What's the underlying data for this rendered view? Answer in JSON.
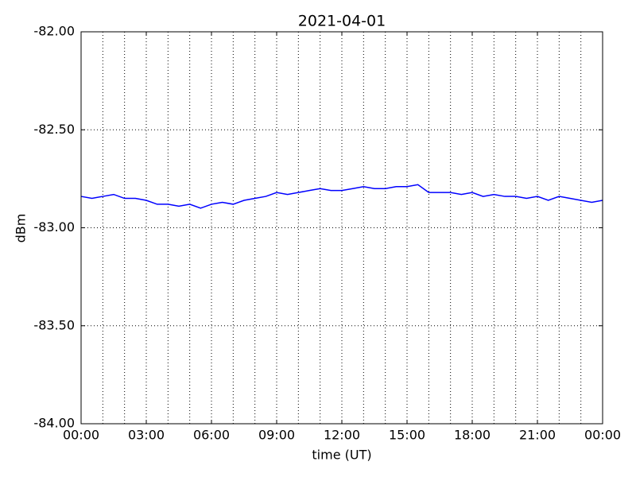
{
  "chart_data": {
    "type": "line",
    "title": "2021-04-01",
    "x_label": "time (UT)",
    "y_label": "dBm",
    "x": [
      0,
      0.5,
      1,
      1.5,
      2,
      2.5,
      3,
      3.5,
      4,
      4.5,
      5,
      5.5,
      6,
      6.5,
      7,
      7.5,
      8,
      8.5,
      9,
      9.5,
      10,
      10.5,
      11,
      11.5,
      12,
      12.5,
      13,
      13.5,
      14,
      14.5,
      15,
      15.5,
      16,
      16.5,
      17,
      17.5,
      18,
      18.5,
      19,
      19.5,
      20,
      20.5,
      21,
      21.5,
      22,
      22.5,
      23,
      23.5,
      24
    ],
    "series": [
      {
        "color": "#0000ff",
        "values": [
          -82.84,
          -82.85,
          -82.84,
          -82.83,
          -82.85,
          -82.85,
          -82.86,
          -82.88,
          -82.88,
          -82.89,
          -82.88,
          -82.9,
          -82.88,
          -82.87,
          -82.88,
          -82.86,
          -82.85,
          -82.84,
          -82.82,
          -82.83,
          -82.82,
          -82.81,
          -82.8,
          -82.81,
          -82.81,
          -82.8,
          -82.79,
          -82.8,
          -82.8,
          -82.79,
          -82.79,
          -82.78,
          -82.82,
          -82.82,
          -82.82,
          -82.83,
          -82.82,
          -82.84,
          -82.83,
          -82.84,
          -82.84,
          -82.85,
          -82.84,
          -82.86,
          -82.84,
          -82.85,
          -82.86,
          -82.87,
          -82.86
        ]
      }
    ],
    "xlim": [
      0,
      24
    ],
    "xticks": [
      {
        "value": 0,
        "label": "00:00"
      },
      {
        "value": 3,
        "label": "03:00"
      },
      {
        "value": 6,
        "label": "06:00"
      },
      {
        "value": 9,
        "label": "09:00"
      },
      {
        "value": 12,
        "label": "12:00"
      },
      {
        "value": 15,
        "label": "15:00"
      },
      {
        "value": 18,
        "label": "18:00"
      },
      {
        "value": 21,
        "label": "21:00"
      },
      {
        "value": 24,
        "label": "00:00"
      }
    ],
    "x_minor_ticks": [
      1,
      2,
      4,
      5,
      7,
      8,
      10,
      11,
      13,
      14,
      16,
      17,
      19,
      20,
      22,
      23
    ],
    "ylim": [
      -84,
      -82
    ],
    "yticks": [
      {
        "value": -84,
        "label": "-84.00"
      },
      {
        "value": -83.5,
        "label": "-83.50"
      },
      {
        "value": -83,
        "label": "-83.00"
      },
      {
        "value": -82.5,
        "label": "-82.50"
      },
      {
        "value": -82,
        "label": "-82.00"
      }
    ],
    "grid": true
  }
}
